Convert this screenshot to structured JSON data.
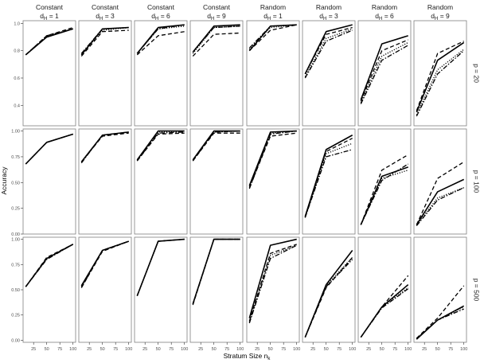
{
  "chart_data": {
    "type": "line",
    "title": "",
    "xlabel": "Stratum Size n",
    "xlabel_subscript": "k",
    "ylabel": "Accuracy",
    "x": [
      10,
      50,
      100
    ],
    "x_ticks": [
      "25",
      "50",
      "75",
      "100"
    ],
    "x_tick_values": [
      25,
      50,
      75,
      100
    ],
    "xlim": [
      5,
      105
    ],
    "column_headers": [
      {
        "design": "Constant",
        "d": "1"
      },
      {
        "design": "Constant",
        "d": "3"
      },
      {
        "design": "Constant",
        "d": "6"
      },
      {
        "design": "Constant",
        "d": "9"
      },
      {
        "design": "Random",
        "d": "1"
      },
      {
        "design": "Random",
        "d": "3"
      },
      {
        "design": "Random",
        "d": "6"
      },
      {
        "design": "Random",
        "d": "9"
      }
    ],
    "d_label_prefix": "d",
    "d_label_subscript": "H",
    "d_label_join": " = ",
    "rows": [
      {
        "label": "p = 20",
        "ylim": [
          0.25,
          1.02
        ],
        "y_ticks": [
          "0.4",
          "0.6",
          "0.8",
          "1.0"
        ],
        "y_tick_values": [
          0.4,
          0.6,
          0.8,
          1.0
        ],
        "panels": [
          {
            "series": [
              [
                0.77,
                0.9,
                0.96
              ],
              [
                0.77,
                0.91,
                0.97
              ],
              [
                0.77,
                0.91,
                0.96
              ],
              [
                0.77,
                0.9,
                0.96
              ]
            ]
          },
          {
            "series": [
              [
                0.77,
                0.96,
                0.97
              ],
              [
                0.76,
                0.94,
                0.95
              ],
              [
                0.78,
                0.96,
                0.97
              ],
              [
                0.77,
                0.95,
                0.97
              ]
            ]
          },
          {
            "series": [
              [
                0.78,
                0.97,
                0.99
              ],
              [
                0.77,
                0.91,
                0.94
              ],
              [
                0.78,
                0.96,
                0.99
              ],
              [
                0.78,
                0.96,
                0.98
              ]
            ]
          },
          {
            "series": [
              [
                0.79,
                0.98,
                0.99
              ],
              [
                0.76,
                0.92,
                0.93
              ],
              [
                0.79,
                0.97,
                0.98
              ],
              [
                0.78,
                0.97,
                0.98
              ]
            ]
          },
          {
            "series": [
              [
                0.8,
                0.98,
                0.99
              ],
              [
                0.8,
                0.95,
                0.99
              ],
              [
                0.82,
                0.98,
                0.99
              ],
              [
                0.81,
                0.97,
                0.99
              ]
            ]
          },
          {
            "series": [
              [
                0.63,
                0.94,
                0.99
              ],
              [
                0.63,
                0.92,
                0.97
              ],
              [
                0.6,
                0.87,
                0.95
              ],
              [
                0.61,
                0.89,
                0.96
              ]
            ]
          },
          {
            "series": [
              [
                0.44,
                0.85,
                0.91
              ],
              [
                0.43,
                0.8,
                0.88
              ],
              [
                0.41,
                0.73,
                0.84
              ],
              [
                0.42,
                0.76,
                0.86
              ]
            ]
          },
          {
            "series": [
              [
                0.35,
                0.73,
                0.86
              ],
              [
                0.36,
                0.78,
                0.87
              ],
              [
                0.32,
                0.63,
                0.8
              ],
              [
                0.33,
                0.66,
                0.81
              ]
            ]
          }
        ]
      },
      {
        "label": "p = 100",
        "ylim": [
          0.0,
          1.02
        ],
        "y_ticks": [
          "0.00",
          "0.25",
          "0.50",
          "0.75",
          "1.00"
        ],
        "y_tick_values": [
          0.0,
          0.25,
          0.5,
          0.75,
          1.0
        ],
        "panels": [
          {
            "series": [
              [
                0.68,
                0.89,
                0.97
              ],
              [
                0.68,
                0.89,
                0.97
              ],
              [
                0.68,
                0.89,
                0.97
              ],
              [
                0.68,
                0.89,
                0.97
              ]
            ]
          },
          {
            "series": [
              [
                0.7,
                0.96,
                0.99
              ],
              [
                0.7,
                0.95,
                0.98
              ],
              [
                0.69,
                0.96,
                0.99
              ],
              [
                0.7,
                0.96,
                0.99
              ]
            ]
          },
          {
            "series": [
              [
                0.72,
                1.0,
                1.0
              ],
              [
                0.71,
                0.97,
                0.98
              ],
              [
                0.71,
                0.98,
                0.99
              ],
              [
                0.72,
                0.99,
                1.0
              ]
            ]
          },
          {
            "series": [
              [
                0.72,
                1.0,
                1.0
              ],
              [
                0.71,
                0.98,
                0.98
              ],
              [
                0.71,
                0.99,
                1.0
              ],
              [
                0.72,
                0.99,
                1.0
              ]
            ]
          },
          {
            "series": [
              [
                0.47,
                0.99,
                1.0
              ],
              [
                0.45,
                0.95,
                0.98
              ],
              [
                0.44,
                0.97,
                1.0
              ],
              [
                0.46,
                0.98,
                1.0
              ]
            ]
          },
          {
            "series": [
              [
                0.17,
                0.82,
                0.96
              ],
              [
                0.16,
                0.8,
                0.93
              ],
              [
                0.16,
                0.75,
                0.82
              ],
              [
                0.16,
                0.78,
                0.88
              ]
            ]
          },
          {
            "series": [
              [
                0.09,
                0.56,
                0.65
              ],
              [
                0.09,
                0.62,
                0.77
              ],
              [
                0.09,
                0.52,
                0.68
              ],
              [
                0.09,
                0.54,
                0.62
              ]
            ]
          },
          {
            "series": [
              [
                0.09,
                0.41,
                0.53
              ],
              [
                0.09,
                0.54,
                0.7
              ],
              [
                0.08,
                0.33,
                0.45
              ],
              [
                0.09,
                0.35,
                0.45
              ]
            ]
          }
        ]
      },
      {
        "label": "p = 500",
        "ylim": [
          -0.02,
          1.02
        ],
        "y_ticks": [
          "0.00",
          "0.25",
          "0.50",
          "0.75",
          "1.00"
        ],
        "y_tick_values": [
          0.0,
          0.25,
          0.5,
          0.75,
          1.0
        ],
        "panels": [
          {
            "series": [
              [
                0.53,
                0.81,
                0.95
              ],
              [
                0.53,
                0.82,
                0.95
              ],
              [
                0.53,
                0.8,
                0.95
              ],
              [
                0.53,
                0.81,
                0.95
              ]
            ]
          },
          {
            "series": [
              [
                0.54,
                0.89,
                0.98
              ],
              [
                0.52,
                0.88,
                0.98
              ],
              [
                0.52,
                0.89,
                0.98
              ],
              [
                0.53,
                0.89,
                0.98
              ]
            ]
          },
          {
            "series": [
              [
                0.44,
                0.98,
                1.0
              ],
              [
                0.44,
                0.98,
                1.0
              ],
              [
                0.44,
                0.98,
                1.0
              ],
              [
                0.44,
                0.98,
                1.0
              ]
            ]
          },
          {
            "series": [
              [
                0.36,
                1.0,
                1.0
              ],
              [
                0.35,
                1.0,
                1.0
              ],
              [
                0.36,
                1.0,
                1.0
              ],
              [
                0.36,
                1.0,
                1.0
              ]
            ]
          },
          {
            "series": [
              [
                0.22,
                0.94,
                1.0
              ],
              [
                0.19,
                0.86,
                0.95
              ],
              [
                0.17,
                0.81,
                0.94
              ],
              [
                0.18,
                0.84,
                0.94
              ]
            ]
          },
          {
            "series": [
              [
                0.03,
                0.55,
                0.89
              ],
              [
                0.03,
                0.52,
                0.82
              ],
              [
                0.03,
                0.53,
                0.8
              ],
              [
                0.03,
                0.54,
                0.82
              ]
            ]
          },
          {
            "series": [
              [
                0.03,
                0.33,
                0.55
              ],
              [
                0.03,
                0.33,
                0.64
              ],
              [
                0.03,
                0.32,
                0.51
              ],
              [
                0.03,
                0.33,
                0.52
              ]
            ]
          },
          {
            "series": [
              [
                0.01,
                0.2,
                0.34
              ],
              [
                0.02,
                0.22,
                0.54
              ],
              [
                0.01,
                0.2,
                0.31
              ],
              [
                0.02,
                0.2,
                0.33
              ]
            ]
          }
        ]
      }
    ],
    "series_styles": [
      {
        "dash": "",
        "width": 1.6
      },
      {
        "dash": "5,3",
        "width": 1.3
      },
      {
        "dash": "6,2,1.5,2",
        "width": 1.3
      },
      {
        "dash": "1.2,1.8",
        "width": 1.3
      }
    ],
    "line_color": "#000000",
    "panel_border_color": "#7f7f7f",
    "strip_color": "#ffffff"
  }
}
